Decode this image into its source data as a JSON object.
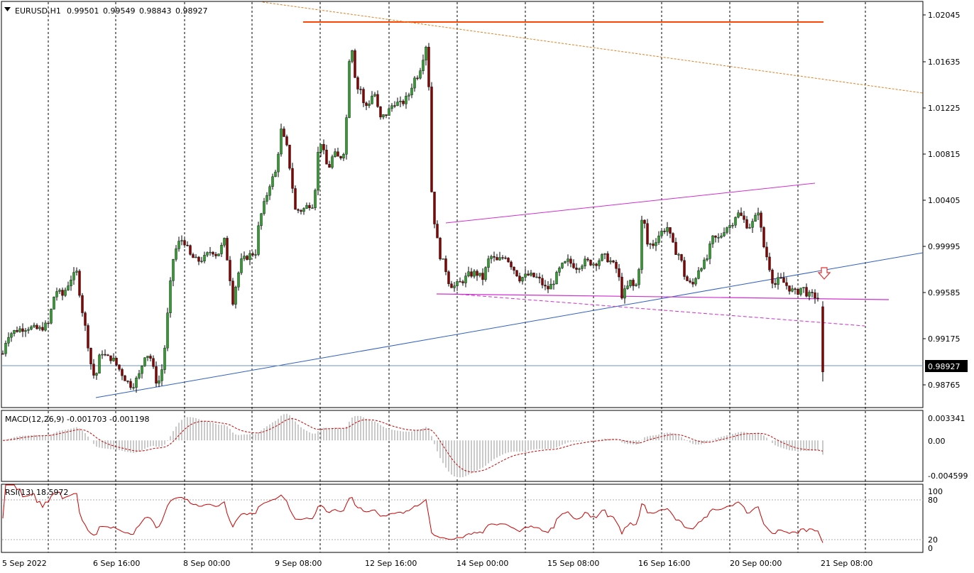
{
  "header": {
    "symbol": "EURUSD,H1",
    "ohlc": [
      "0.99501",
      "0.99549",
      "0.98843",
      "0.98927"
    ]
  },
  "price_axis": {
    "ticks": [
      "1.02045",
      "1.01635",
      "1.01225",
      "1.00815",
      "1.00405",
      "0.99995",
      "0.99585",
      "0.99175",
      "0.98765"
    ],
    "current_price": "0.98927"
  },
  "time_axis": [
    "5 Sep 2022",
    "6 Sep 16:00",
    "8 Sep 00:00",
    "9 Sep 08:00",
    "12 Sep 16:00",
    "14 Sep 00:00",
    "15 Sep 08:00",
    "16 Sep 16:00",
    "20 Sep 00:00",
    "21 Sep 08:00"
  ],
  "macd": {
    "label": "MACD(12,26,9) -0.001703 -0.001198",
    "ticks": [
      "0.003341",
      "0.00",
      "-0.004599"
    ]
  },
  "rsi": {
    "label": "RSI(13) 18.5972",
    "ticks": [
      "100",
      "80",
      "20",
      "0"
    ]
  },
  "colors": {
    "up_candle": "#2e9e2e",
    "down_candle": "#8b0000",
    "macd_hist": "#b8b8b8",
    "macd_signal": "#cc0000",
    "rsi": "#cc0000",
    "resistance": "#ff4500",
    "trend_orange": "#e08020",
    "trend_blue": "#3060c0",
    "channel": "#d030d0",
    "arrow": "#e03030"
  },
  "chart_data": {
    "type": "candlestick",
    "symbol": "EURUSD",
    "timeframe": "H1",
    "last": {
      "open": 0.99501,
      "high": 0.99549,
      "low": 0.98843,
      "close": 0.98927
    },
    "ylim": [
      0.9862,
      1.0218
    ],
    "key_levels": {
      "resistance": 1.0199,
      "rising_channel_top": [
        1.0019,
        1.0049
      ],
      "support_flat": [
        0.99585,
        0.99545
      ],
      "support_dashed": [
        0.99585,
        0.993
      ]
    },
    "path_points": [
      [
        0,
        0.9898
      ],
      [
        10,
        0.9925
      ],
      [
        25,
        0.993
      ],
      [
        40,
        0.9932
      ],
      [
        55,
        0.993
      ],
      [
        68,
        0.9935
      ],
      [
        78,
        0.9965
      ],
      [
        88,
        0.996
      ],
      [
        100,
        0.9975
      ],
      [
        108,
        0.998
      ],
      [
        115,
        0.995
      ],
      [
        122,
        0.9925
      ],
      [
        128,
        0.99
      ],
      [
        134,
        0.9885
      ],
      [
        142,
        0.9912
      ],
      [
        150,
        0.9905
      ],
      [
        158,
        0.9905
      ],
      [
        168,
        0.9895
      ],
      [
        178,
        0.9885
      ],
      [
        186,
        0.988
      ],
      [
        196,
        0.989
      ],
      [
        205,
        0.991
      ],
      [
        212,
        0.9905
      ],
      [
        222,
        0.988
      ],
      [
        230,
        0.99
      ],
      [
        237,
        0.995
      ],
      [
        243,
        0.999
      ],
      [
        250,
        1.0005
      ],
      [
        258,
        1.001
      ],
      [
        268,
        0.9995
      ],
      [
        278,
        0.999
      ],
      [
        288,
        0.9993
      ],
      [
        298,
        1.0
      ],
      [
        306,
        0.9995
      ],
      [
        316,
        1.0008
      ],
      [
        322,
        0.9985
      ],
      [
        328,
        0.9955
      ],
      [
        334,
        0.9975
      ],
      [
        340,
        0.999
      ],
      [
        350,
        0.9995
      ],
      [
        360,
        0.9998
      ],
      [
        365,
        1.0025
      ],
      [
        372,
        1.004
      ],
      [
        380,
        1.0058
      ],
      [
        388,
        1.0068
      ],
      [
        396,
        1.0105
      ],
      [
        404,
        1.009
      ],
      [
        410,
        1.0065
      ],
      [
        416,
        1.0035
      ],
      [
        426,
        1.0035
      ],
      [
        435,
        1.004
      ],
      [
        442,
        1.004
      ],
      [
        450,
        1.01
      ],
      [
        456,
        1.0085
      ],
      [
        462,
        1.007
      ],
      [
        470,
        1.0085
      ],
      [
        478,
        1.008
      ],
      [
        485,
        1.0088
      ],
      [
        490,
        1.0135
      ],
      [
        493,
        1.0185
      ],
      [
        497,
        1.0175
      ],
      [
        502,
        1.014
      ],
      [
        507,
        1.0145
      ],
      [
        513,
        1.0125
      ],
      [
        520,
        1.013
      ],
      [
        527,
        1.014
      ],
      [
        535,
        1.0115
      ],
      [
        545,
        1.012
      ],
      [
        555,
        1.013
      ],
      [
        565,
        1.0128
      ],
      [
        575,
        1.0135
      ],
      [
        583,
        1.015
      ],
      [
        590,
        1.0155
      ],
      [
        596,
        1.017
      ],
      [
        600,
        1.018
      ],
      [
        603,
        1.018
      ],
      [
        606,
        1.0075
      ],
      [
        609,
        1.004
      ],
      [
        614,
        1.0015
      ],
      [
        620,
        0.9995
      ],
      [
        627,
        0.9985
      ],
      [
        633,
        0.997
      ],
      [
        640,
        0.9968
      ],
      [
        650,
        0.9972
      ],
      [
        660,
        0.9978
      ],
      [
        670,
        0.998
      ],
      [
        680,
        0.9975
      ],
      [
        690,
        0.9995
      ],
      [
        700,
        0.999
      ],
      [
        712,
        0.9995
      ],
      [
        722,
        0.9985
      ],
      [
        732,
        0.9975
      ],
      [
        745,
        0.9978
      ],
      [
        758,
        0.9975
      ],
      [
        770,
        0.9965
      ],
      [
        778,
        0.997
      ],
      [
        790,
        0.9985
      ],
      [
        800,
        0.999
      ],
      [
        812,
        0.9985
      ],
      [
        825,
        0.999
      ],
      [
        838,
        0.9988
      ],
      [
        850,
        0.9995
      ],
      [
        860,
        0.999
      ],
      [
        870,
        0.9982
      ],
      [
        876,
        0.996
      ],
      [
        882,
        0.9965
      ],
      [
        888,
        0.9972
      ],
      [
        895,
        0.9965
      ],
      [
        900,
        0.9985
      ],
      [
        905,
        1.0035
      ],
      [
        912,
        1.0005
      ],
      [
        920,
        1.0005
      ],
      [
        930,
        1.0015
      ],
      [
        940,
        1.002
      ],
      [
        950,
        1.0
      ],
      [
        958,
        0.9995
      ],
      [
        965,
        0.9975
      ],
      [
        975,
        0.9968
      ],
      [
        985,
        0.9985
      ],
      [
        995,
        0.999
      ],
      [
        1003,
        1.001
      ],
      [
        1013,
        1.001
      ],
      [
        1022,
        1.002
      ],
      [
        1030,
        1.0022
      ],
      [
        1038,
        1.0033
      ],
      [
        1046,
        1.0028
      ],
      [
        1054,
        1.002
      ],
      [
        1062,
        1.0025
      ],
      [
        1068,
        1.0035
      ],
      [
        1075,
        1.0005
      ],
      [
        1082,
        0.999
      ],
      [
        1090,
        0.9968
      ],
      [
        1098,
        0.9975
      ],
      [
        1106,
        0.997
      ],
      [
        1114,
        0.9965
      ],
      [
        1122,
        0.9962
      ],
      [
        1130,
        0.9968
      ],
      [
        1138,
        0.996
      ],
      [
        1145,
        0.996
      ],
      [
        1152,
        0.9958
      ],
      [
        1156,
        0.995
      ],
      [
        1159,
        0.98927
      ]
    ]
  }
}
